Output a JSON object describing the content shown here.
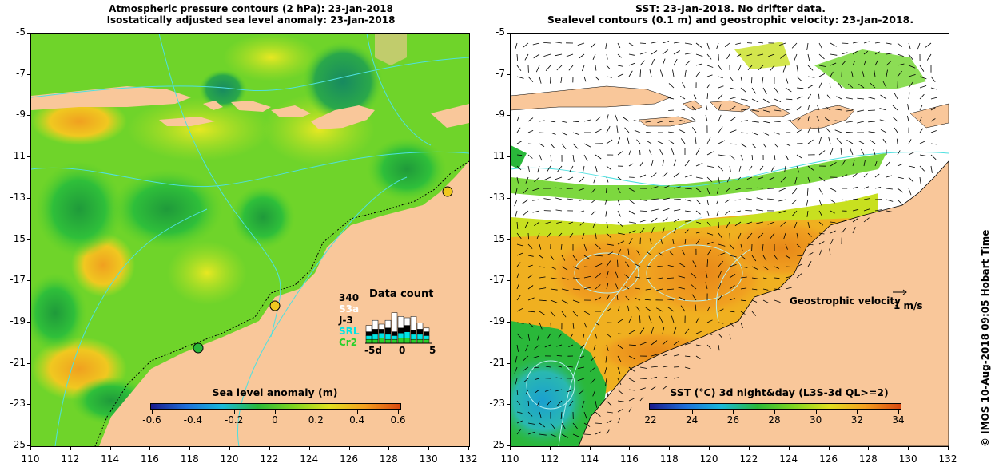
{
  "left_panel": {
    "title_line1": "Atmospheric pressure contours (2 hPa): 23-Jan-2018",
    "title_line2": "Isostatically adjusted sea level anomaly: 23-Jan-2018",
    "colorbar": {
      "title": "Sea level anomaly (m)",
      "ticks": [
        "-0.6",
        "-0.4",
        "-0.2",
        "0",
        "0.2",
        "0.4",
        "0.6"
      ],
      "colors": [
        "#1a1a8c",
        "#1e6fd9",
        "#19b8d9",
        "#2ab83a",
        "#7ed321",
        "#e0e020",
        "#f4a020",
        "#d84810"
      ]
    },
    "data_count": {
      "title": "Data count",
      "total": "340",
      "missions": [
        "S3a",
        "J-3",
        "SRL",
        "Cr2"
      ],
      "mission_colors": [
        "#ffffff",
        "#000000",
        "#00e5e5",
        "#2ad02a"
      ],
      "axis_labels": [
        "-5d",
        "0",
        "5"
      ]
    }
  },
  "right_panel": {
    "title_line1": "SST: 23-Jan-2018. No drifter data.",
    "title_line2": "Sealevel contours (0.1 m) and geostrophic velocity: 23-Jan-2018.",
    "geostrophic_label": "Geostrophic velocity",
    "velocity_unit": "1 m/s",
    "colorbar": {
      "title": "SST (°C) 3d night&day (L3S-3d QL>=2)",
      "ticks": [
        "22",
        "24",
        "26",
        "28",
        "30",
        "32",
        "34"
      ],
      "colors": [
        "#1a1a8c",
        "#1e6fd9",
        "#19b8d9",
        "#2ab83a",
        "#7ed321",
        "#e0e020",
        "#f4a020",
        "#d84810"
      ]
    }
  },
  "axes": {
    "lat_ticks": [
      "-5",
      "-7",
      "-9",
      "-11",
      "-13",
      "-15",
      "-17",
      "-19",
      "-21",
      "-23",
      "-25"
    ],
    "lon_ticks": [
      "110",
      "112",
      "114",
      "116",
      "118",
      "120",
      "122",
      "124",
      "126",
      "128",
      "130",
      "132"
    ]
  },
  "credit": "© IMOS 10-Aug-2018 09:05 Hobart Time",
  "colors": {
    "land": "#f9c79a",
    "ocean_green": "#5cd02a",
    "warm_orange": "#f0a020"
  }
}
